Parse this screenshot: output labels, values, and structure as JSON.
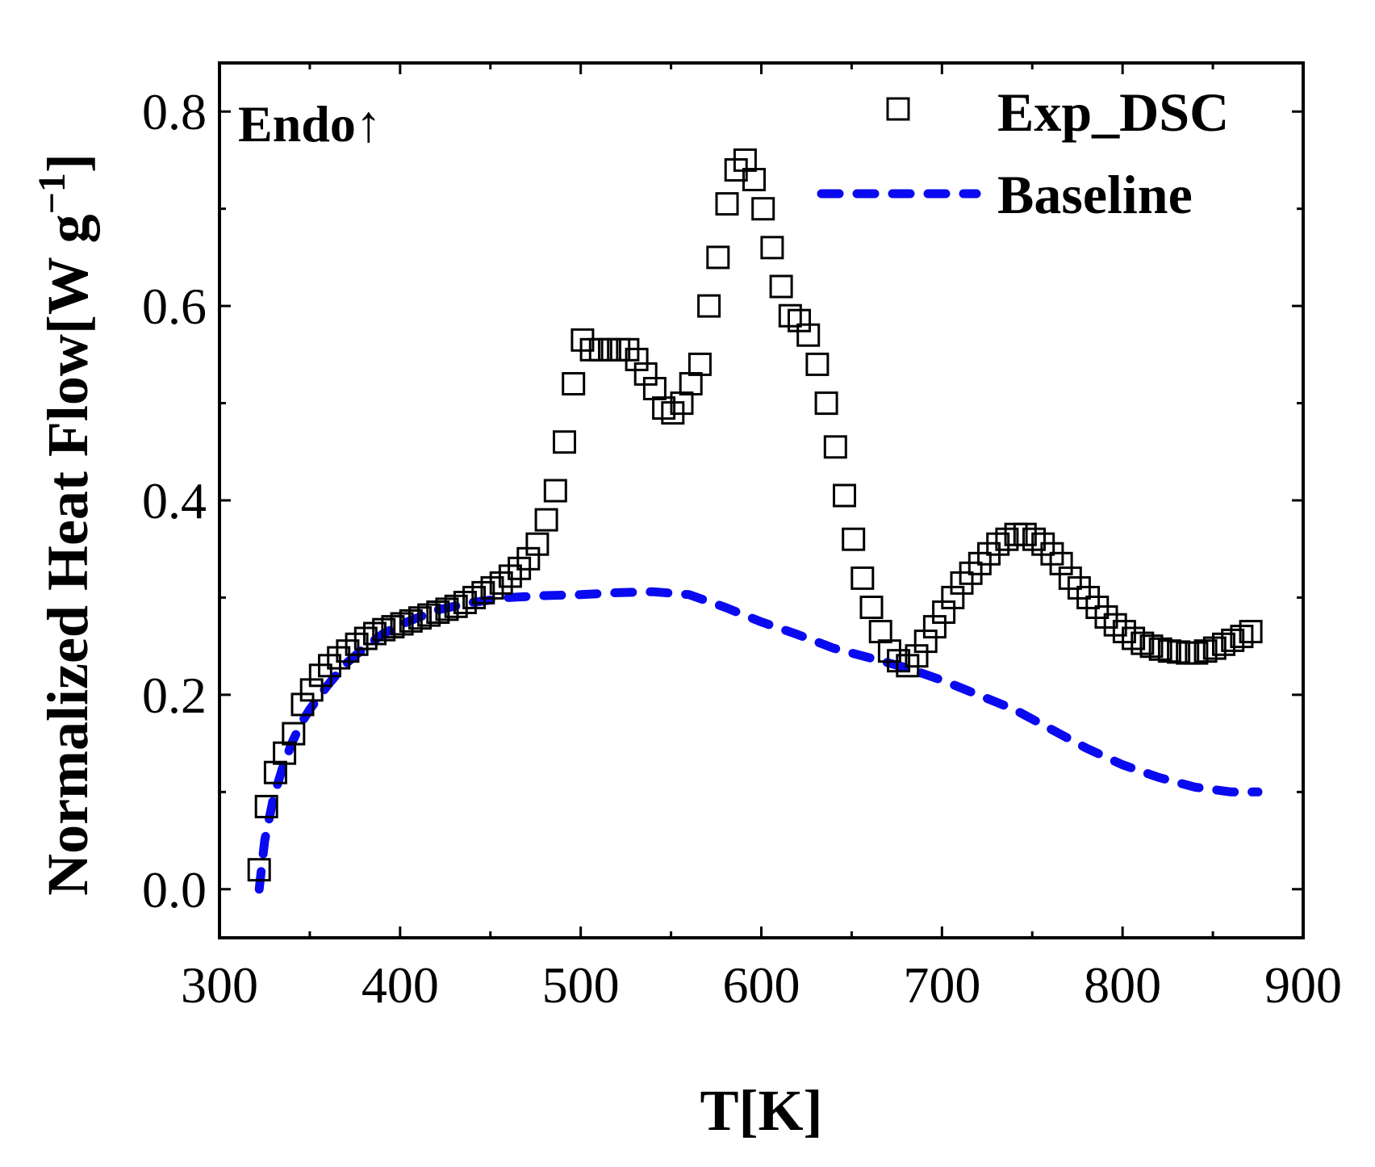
{
  "chart_data": {
    "type": "scatter",
    "title": "",
    "xlabel": "T[K]",
    "ylabel": "Normalized Heat Flow[W g",
    "ylabel_superscript": "−1",
    "ylabel_suffix": "]",
    "xlim": [
      300,
      900
    ],
    "ylim": [
      -0.05,
      0.85
    ],
    "xticks": [
      300,
      400,
      500,
      600,
      700,
      800,
      900
    ],
    "xtick_labels": [
      "300",
      "400",
      "500",
      "600",
      "700",
      "800",
      "900"
    ],
    "yticks": [
      0.0,
      0.2,
      0.4,
      0.6,
      0.8
    ],
    "ytick_labels": [
      "0.0",
      "0.2",
      "0.4",
      "0.6",
      "0.8"
    ],
    "annotation": "Endo↑",
    "legend_position": "top-right",
    "grid": false,
    "series": [
      {
        "name": "Exp_DSC",
        "style": "open-square",
        "color": "#000000",
        "x": [
          322,
          326,
          331,
          336,
          341,
          346,
          351,
          356,
          361,
          366,
          371,
          376,
          381,
          386,
          391,
          396,
          401,
          406,
          411,
          416,
          421,
          426,
          431,
          436,
          441,
          446,
          451,
          456,
          461,
          466,
          471,
          476,
          481,
          486,
          491,
          496,
          501,
          506,
          511,
          516,
          521,
          526,
          531,
          536,
          541,
          546,
          551,
          556,
          561,
          566,
          571,
          576,
          581,
          586,
          591,
          596,
          601,
          606,
          611,
          616,
          621,
          626,
          631,
          636,
          641,
          646,
          651,
          656,
          661,
          666,
          671,
          676,
          681,
          686,
          691,
          696,
          701,
          706,
          711,
          716,
          721,
          726,
          731,
          736,
          741,
          746,
          751,
          756,
          761,
          766,
          771,
          776,
          781,
          786,
          791,
          796,
          801,
          806,
          811,
          816,
          821,
          826,
          831,
          836,
          841,
          846,
          851,
          856,
          861,
          866,
          871
        ],
        "y": [
          0.02,
          0.085,
          0.12,
          0.14,
          0.16,
          0.19,
          0.205,
          0.22,
          0.23,
          0.238,
          0.245,
          0.252,
          0.258,
          0.263,
          0.267,
          0.27,
          0.273,
          0.276,
          0.279,
          0.282,
          0.285,
          0.288,
          0.291,
          0.295,
          0.3,
          0.305,
          0.31,
          0.315,
          0.322,
          0.33,
          0.34,
          0.355,
          0.38,
          0.41,
          0.46,
          0.52,
          0.565,
          0.555,
          0.555,
          0.555,
          0.555,
          0.555,
          0.545,
          0.53,
          0.515,
          0.495,
          0.49,
          0.5,
          0.52,
          0.54,
          0.6,
          0.65,
          0.705,
          0.74,
          0.75,
          0.73,
          0.7,
          0.66,
          0.62,
          0.59,
          0.585,
          0.57,
          0.54,
          0.5,
          0.455,
          0.405,
          0.36,
          0.32,
          0.29,
          0.265,
          0.245,
          0.235,
          0.23,
          0.24,
          0.255,
          0.27,
          0.285,
          0.3,
          0.315,
          0.325,
          0.335,
          0.345,
          0.355,
          0.36,
          0.365,
          0.365,
          0.36,
          0.355,
          0.345,
          0.335,
          0.32,
          0.31,
          0.3,
          0.29,
          0.28,
          0.272,
          0.265,
          0.258,
          0.253,
          0.25,
          0.247,
          0.245,
          0.244,
          0.243,
          0.243,
          0.245,
          0.248,
          0.252,
          0.256,
          0.26,
          0.265
        ]
      },
      {
        "name": "Baseline",
        "style": "dashed-line",
        "color": "#0a0af0",
        "x": [
          322,
          325,
          330,
          335,
          340,
          345,
          350,
          360,
          370,
          380,
          390,
          400,
          420,
          440,
          460,
          480,
          500,
          520,
          540,
          560,
          580,
          600,
          620,
          640,
          660,
          680,
          700,
          720,
          740,
          760,
          780,
          800,
          820,
          840,
          860,
          875
        ],
        "y": [
          0.0,
          0.05,
          0.095,
          0.125,
          0.15,
          0.17,
          0.185,
          0.21,
          0.232,
          0.248,
          0.262,
          0.272,
          0.287,
          0.295,
          0.3,
          0.302,
          0.303,
          0.305,
          0.306,
          0.303,
          0.29,
          0.275,
          0.262,
          0.248,
          0.238,
          0.228,
          0.215,
          0.2,
          0.185,
          0.165,
          0.145,
          0.128,
          0.115,
          0.105,
          0.1,
          0.1
        ]
      }
    ]
  }
}
